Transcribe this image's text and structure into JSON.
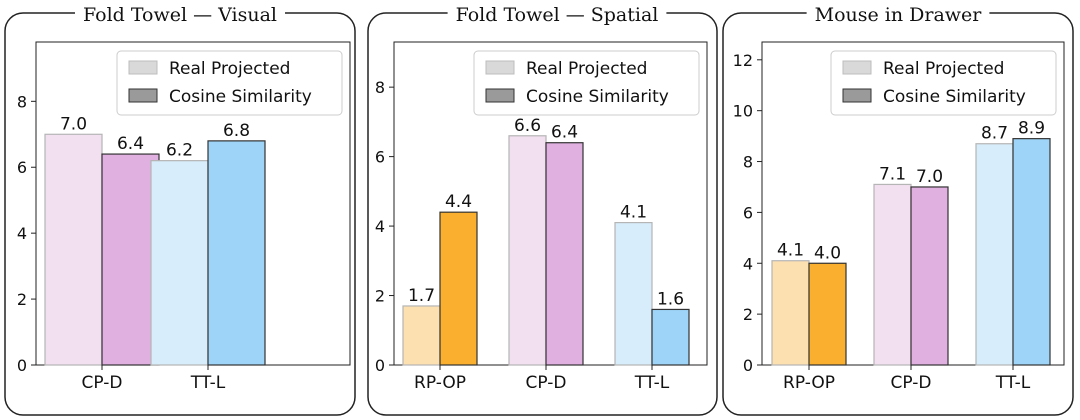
{
  "legend": {
    "real_label": "Real Projected",
    "cosine_label": "Cosine Similarity",
    "real_color": "#d9d9d9",
    "cosine_color": "#9a9a9a"
  },
  "palette": {
    "RP-OP": {
      "light": "#fde0b0",
      "dark": "#fbaf2f"
    },
    "CP-D": {
      "light": "#f2dff0",
      "dark": "#e0b0e0"
    },
    "TT-L": {
      "light": "#d7edfb",
      "dark": "#9dd4f7"
    }
  },
  "chart_data": [
    {
      "type": "bar",
      "title": "Fold Towel — Visual",
      "categories": [
        "CP-D",
        "TT-L"
      ],
      "series": [
        {
          "name": "Real Projected",
          "values": [
            7.0,
            6.2
          ]
        },
        {
          "name": "Cosine Similarity",
          "values": [
            6.4,
            6.8
          ]
        }
      ],
      "value_labels": [
        [
          "7.0",
          "6.2"
        ],
        [
          "6.4",
          "6.8"
        ]
      ],
      "yticks": [
        0,
        2,
        4,
        6,
        8
      ],
      "ylim": [
        0,
        9.8
      ],
      "legend_position": "top-right",
      "xlabel": "",
      "ylabel": ""
    },
    {
      "type": "bar",
      "title": "Fold Towel — Spatial",
      "categories": [
        "RP-OP",
        "CP-D",
        "TT-L"
      ],
      "series": [
        {
          "name": "Real Projected",
          "values": [
            1.7,
            6.6,
            4.1
          ]
        },
        {
          "name": "Cosine Similarity",
          "values": [
            4.4,
            6.4,
            1.6
          ]
        }
      ],
      "value_labels": [
        [
          "1.7",
          "6.6",
          "4.1"
        ],
        [
          "4.4",
          "6.4",
          "1.6"
        ]
      ],
      "yticks": [
        0,
        2,
        4,
        6,
        8
      ],
      "ylim": [
        0,
        9.3
      ],
      "legend_position": "top-right",
      "xlabel": "",
      "ylabel": ""
    },
    {
      "type": "bar",
      "title": "Mouse in Drawer",
      "categories": [
        "RP-OP",
        "CP-D",
        "TT-L"
      ],
      "series": [
        {
          "name": "Real Projected",
          "values": [
            4.1,
            7.1,
            8.7
          ]
        },
        {
          "name": "Cosine Similarity",
          "values": [
            4.0,
            7.0,
            8.9
          ]
        }
      ],
      "value_labels": [
        [
          "4.1",
          "7.1",
          "8.7"
        ],
        [
          "4.0",
          "7.0",
          "8.9"
        ]
      ],
      "yticks": [
        0,
        2,
        4,
        6,
        8,
        10,
        12
      ],
      "ylim": [
        0,
        12.7
      ],
      "legend_position": "top-right",
      "xlabel": "",
      "ylabel": ""
    }
  ]
}
